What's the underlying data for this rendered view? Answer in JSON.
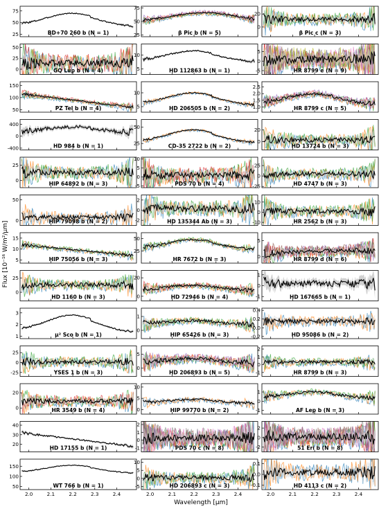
{
  "figure": {
    "ylabel": "Flux [10⁻¹⁶ W/m²/µm]",
    "xlabel": "Wavelength [µm]",
    "xlim": [
      1.96,
      2.49
    ],
    "xticks": [
      "2.0",
      "2.1",
      "2.2",
      "2.3",
      "2.4"
    ],
    "series_colors": [
      "#1f77b4",
      "#ff7f0e",
      "#2ca02c",
      "#d62728",
      "#9467bd",
      "#8c564b",
      "#e377c2",
      "#7f7f7f",
      "#bcbd22"
    ]
  },
  "chart_data": [
    {
      "type": "line",
      "title": "BD+70 260 b (N = 1)",
      "n": 1,
      "yticks": [
        "25",
        "50",
        "75"
      ],
      "ytick_vals": [
        25,
        50,
        75
      ],
      "ylim": [
        20,
        85
      ],
      "shape": "peak",
      "level": [
        45,
        70
      ],
      "noise": 0.03
    },
    {
      "type": "line",
      "title": "β Pic b (N = 5)",
      "n": 5,
      "yticks": [
        "25",
        "50",
        "75"
      ],
      "ytick_vals": [
        25,
        50,
        75
      ],
      "ylim": [
        22,
        78
      ],
      "shape": "pic",
      "level": [
        48,
        66
      ],
      "noise": 0.04
    },
    {
      "type": "line",
      "title": "β Pic c (N = 3)",
      "n": 3,
      "yticks": [
        "0",
        "20"
      ],
      "ytick_vals": [
        0,
        20
      ],
      "ylim": [
        -15,
        32
      ],
      "shape": "flat",
      "level": [
        12,
        12
      ],
      "noise": 0.14
    },
    {
      "type": "line",
      "title": "GQ Lup b (N = 4)",
      "n": 4,
      "yticks": [
        "0",
        "25",
        "50"
      ],
      "ytick_vals": [
        0,
        25,
        50
      ],
      "ylim": [
        -12,
        58
      ],
      "shape": "flat",
      "level": [
        14,
        14
      ],
      "noise": 0.2
    },
    {
      "type": "line",
      "title": "HD 112863 b (N = 1)",
      "n": 1,
      "yticks": [
        "5",
        "10"
      ],
      "ytick_vals": [
        5,
        10
      ],
      "ylim": [
        3,
        14
      ],
      "shape": "peak",
      "level": [
        8,
        11.5
      ],
      "noise": 0.04
    },
    {
      "type": "line",
      "title": "HR 8799 e (N = 9)",
      "n": 9,
      "yticks": [
        "-5",
        "0",
        "5"
      ],
      "ytick_vals": [
        -5,
        0,
        5
      ],
      "ylim": [
        -7,
        9
      ],
      "shape": "flat",
      "level": [
        1,
        1
      ],
      "noise": 0.22
    },
    {
      "type": "line",
      "title": "PZ Tel b (N = 4)",
      "n": 4,
      "yticks": [
        "50",
        "100",
        "150"
      ],
      "ytick_vals": [
        50,
        100,
        150
      ],
      "ylim": [
        40,
        165
      ],
      "shape": "decline",
      "level": [
        115,
        60
      ],
      "noise": 0.04
    },
    {
      "type": "line",
      "title": "HD 206505 b (N = 2)",
      "n": 2,
      "yticks": [
        "5",
        "10"
      ],
      "ytick_vals": [
        5,
        10
      ],
      "ylim": [
        3,
        14
      ],
      "shape": "peak",
      "level": [
        6,
        10
      ],
      "noise": 0.03
    },
    {
      "type": "line",
      "title": "HR 8799 c (N = 5)",
      "n": 5,
      "yticks": [
        "1.0",
        "1.5",
        "2.0",
        "2.5"
      ],
      "ytick_vals": [
        1,
        1.5,
        2,
        2.5
      ],
      "ylim": [
        0.6,
        2.9
      ],
      "shape": "peak",
      "level": [
        1.3,
        2.0
      ],
      "noise": 0.07
    },
    {
      "type": "line",
      "title": "HD 984 b (N = 1)",
      "n": 1,
      "yticks": [
        "-400",
        "0",
        "400"
      ],
      "ytick_vals": [
        -400,
        0,
        400
      ],
      "ylim": [
        -460,
        560
      ],
      "shape": "peak",
      "level": [
        150,
        320
      ],
      "noise": 0.1
    },
    {
      "type": "line",
      "title": "CD-35 2722 b (N = 2)",
      "n": 2,
      "yticks": [
        "25",
        "50"
      ],
      "ytick_vals": [
        25,
        50
      ],
      "ylim": [
        15,
        62
      ],
      "shape": "peak",
      "level": [
        28,
        46
      ],
      "noise": 0.03
    },
    {
      "type": "line",
      "title": "HD 13724 b (N = 3)",
      "n": 3,
      "yticks": [
        "0",
        "20"
      ],
      "ytick_vals": [
        0,
        20
      ],
      "ylim": [
        -14,
        38
      ],
      "shape": "flat",
      "level": [
        3,
        3
      ],
      "noise": 0.14
    },
    {
      "type": "line",
      "title": "HIP 64892 b (N = 3)",
      "n": 3,
      "yticks": [
        "0",
        "25"
      ],
      "ytick_vals": [
        0,
        25
      ],
      "ylim": [
        -12,
        38
      ],
      "shape": "flat",
      "level": [
        13,
        13
      ],
      "noise": 0.16
    },
    {
      "type": "line",
      "title": "PDS 70 b (N = 4)",
      "n": 4,
      "yticks": [
        "-5",
        "0",
        "5",
        "10"
      ],
      "ytick_vals": [
        -5,
        0,
        5,
        10
      ],
      "ylim": [
        -6,
        11
      ],
      "shape": "flat",
      "level": [
        1,
        1
      ],
      "noise": 0.18
    },
    {
      "type": "line",
      "title": "HD 4747 b (N = 3)",
      "n": 3,
      "yticks": [
        "-25",
        "0",
        "25"
      ],
      "ytick_vals": [
        -25,
        0,
        25
      ],
      "ylim": [
        -28,
        45
      ],
      "shape": "flat",
      "level": [
        5,
        5
      ],
      "noise": 0.13
    },
    {
      "type": "line",
      "title": "HIP 79098 b (N = 2)",
      "n": 2,
      "yticks": [
        "0",
        "50"
      ],
      "ytick_vals": [
        0,
        50
      ],
      "ylim": [
        -12,
        62
      ],
      "shape": "flat",
      "level": [
        8,
        8
      ],
      "noise": 0.13
    },
    {
      "type": "line",
      "title": "HD 135344 Ab (N = 3)",
      "n": 3,
      "yticks": [
        "-2",
        "0",
        "2"
      ],
      "ytick_vals": [
        -2,
        0,
        2
      ],
      "ylim": [
        -3,
        3
      ],
      "shape": "flat",
      "level": [
        0.3,
        0.3
      ],
      "noise": 0.18
    },
    {
      "type": "line",
      "title": "HR 2562 b (N = 3)",
      "n": 3,
      "yticks": [
        "-10",
        "0",
        "10"
      ],
      "ytick_vals": [
        -10,
        0,
        10
      ],
      "ylim": [
        -13,
        17
      ],
      "shape": "flat",
      "level": [
        1,
        1
      ],
      "noise": 0.14
    },
    {
      "type": "line",
      "title": "HIP 75056 b (N = 3)",
      "n": 3,
      "yticks": [
        "5",
        "10",
        "15"
      ],
      "ytick_vals": [
        5,
        10,
        15
      ],
      "ylim": [
        3.5,
        17.5
      ],
      "shape": "decline",
      "level": [
        12,
        7
      ],
      "noise": 0.05
    },
    {
      "type": "line",
      "title": "HR 7672 b (N = 3)",
      "n": 3,
      "yticks": [
        "25",
        "50"
      ],
      "ytick_vals": [
        25,
        50
      ],
      "ylim": [
        0,
        62
      ],
      "shape": "peak",
      "level": [
        30,
        48
      ],
      "noise": 0.05
    },
    {
      "type": "line",
      "title": "HR 8799 d (N = 6)",
      "n": 6,
      "yticks": [
        "0",
        "5"
      ],
      "ytick_vals": [
        0,
        5
      ],
      "ylim": [
        -2,
        7.5
      ],
      "shape": "rise",
      "level": [
        1.0,
        2.0
      ],
      "noise": 0.12
    },
    {
      "type": "line",
      "title": "HD 1160 b (N = 3)",
      "n": 3,
      "yticks": [
        "0",
        "25"
      ],
      "ytick_vals": [
        0,
        25
      ],
      "ylim": [
        -15,
        38
      ],
      "shape": "flat",
      "level": [
        13,
        13
      ],
      "noise": 0.12
    },
    {
      "type": "line",
      "title": "HD 72946 b (N = 4)",
      "n": 4,
      "yticks": [
        "0",
        "20"
      ],
      "ytick_vals": [
        0,
        20
      ],
      "ylim": [
        -5,
        28
      ],
      "shape": "peak",
      "level": [
        7,
        12
      ],
      "noise": 0.07
    },
    {
      "type": "line",
      "title": "HD 167665 b (N = 1)",
      "n": 1,
      "yticks": [
        "-1",
        "0",
        "1"
      ],
      "ytick_vals": [
        -1,
        0,
        1
      ],
      "ylim": [
        -1.4,
        1.4
      ],
      "shape": "flat",
      "level": [
        0.2,
        0.2
      ],
      "noise": 0.18
    },
    {
      "type": "line",
      "title": "µ² Sco b (N = 1)",
      "n": 1,
      "yticks": [
        "1",
        "2",
        "3"
      ],
      "ytick_vals": [
        1,
        2,
        3
      ],
      "ylim": [
        0.8,
        3.4
      ],
      "shape": "peak",
      "level": [
        1.5,
        2.8
      ],
      "noise": 0.03
    },
    {
      "type": "line",
      "title": "HIP 65426 b (N = 3)",
      "n": 3,
      "yticks": [
        "0",
        "1"
      ],
      "ytick_vals": [
        0,
        1
      ],
      "ylim": [
        -0.6,
        1.6
      ],
      "shape": "peak",
      "level": [
        0.45,
        0.7
      ],
      "noise": 0.08
    },
    {
      "type": "line",
      "title": "HD 95086 b (N = 2)",
      "n": 2,
      "yticks": [
        "-0.2",
        "0.0",
        "0.2",
        "0.4"
      ],
      "ytick_vals": [
        -0.2,
        0,
        0.2,
        0.4
      ],
      "ylim": [
        -0.25,
        0.45
      ],
      "shape": "flat",
      "level": [
        0.15,
        0.15
      ],
      "noise": 0.12
    },
    {
      "type": "line",
      "title": "YSES 1 b (N = 3)",
      "n": 3,
      "yticks": [
        "-25",
        "0",
        "25"
      ],
      "ytick_vals": [
        -25,
        0,
        25
      ],
      "ylim": [
        -35,
        42
      ],
      "shape": "flat",
      "level": [
        2,
        2
      ],
      "noise": 0.12
    },
    {
      "type": "line",
      "title": "HD 206893 b (N = 5)",
      "n": 5,
      "yticks": [
        "0",
        "5"
      ],
      "ytick_vals": [
        0,
        5
      ],
      "ylim": [
        -3,
        8
      ],
      "shape": "peak",
      "level": [
        2,
        3.5
      ],
      "noise": 0.1
    },
    {
      "type": "line",
      "title": "HR 8799 b (N = 3)",
      "n": 3,
      "yticks": [
        "-1",
        "0",
        "1",
        "2"
      ],
      "ytick_vals": [
        -1,
        0,
        1,
        2
      ],
      "ylim": [
        -1.5,
        2.4
      ],
      "shape": "flat",
      "level": [
        0.35,
        0.35
      ],
      "noise": 0.09
    },
    {
      "type": "line",
      "title": "HR 3549 b (N = 4)",
      "n": 4,
      "yticks": [
        "0",
        "20"
      ],
      "ytick_vals": [
        0,
        20
      ],
      "ylim": [
        -8,
        32
      ],
      "shape": "flat",
      "level": [
        9,
        9
      ],
      "noise": 0.12
    },
    {
      "type": "line",
      "title": "HIP 99770 b (N = 2)",
      "n": 2,
      "yticks": [
        "0",
        "5",
        "10"
      ],
      "ytick_vals": [
        0,
        5,
        10
      ],
      "ylim": [
        -2,
        11.5
      ],
      "shape": "peak",
      "level": [
        3,
        4.5
      ],
      "noise": 0.06
    },
    {
      "type": "line",
      "title": "AF Lep b (N = 3)",
      "n": 3,
      "yticks": [
        "-1",
        "0",
        "1"
      ],
      "ytick_vals": [
        -1,
        0,
        1
      ],
      "ylim": [
        -1.4,
        1.9
      ],
      "shape": "peak",
      "level": [
        0.4,
        1.0
      ],
      "noise": 0.07
    },
    {
      "type": "line",
      "title": "HD 17155 b (N = 1)",
      "n": 1,
      "yticks": [
        "20",
        "30",
        "40"
      ],
      "ytick_vals": [
        20,
        30,
        40
      ],
      "ylim": [
        12,
        44
      ],
      "shape": "decline",
      "level": [
        32,
        18
      ],
      "noise": 0.04
    },
    {
      "type": "line",
      "title": "PDS 70 c (N = 8)",
      "n": 8,
      "yticks": [
        "-1",
        "0",
        "1",
        "2"
      ],
      "ytick_vals": [
        -1,
        0,
        1,
        2
      ],
      "ylim": [
        -1.5,
        2.4
      ],
      "shape": "flat",
      "level": [
        0.3,
        0.3
      ],
      "noise": 0.2
    },
    {
      "type": "line",
      "title": "51 Eri b (N = 8)",
      "n": 8,
      "yticks": [
        "-2",
        "0",
        "2"
      ],
      "ytick_vals": [
        -2,
        0,
        2
      ],
      "ylim": [
        -3,
        3.4
      ],
      "shape": "flat",
      "level": [
        0.2,
        0.2
      ],
      "noise": 0.2
    },
    {
      "type": "line",
      "title": "WT 766 b (N = 1)",
      "n": 1,
      "yticks": [
        "50",
        "100",
        "150"
      ],
      "ytick_vals": [
        50,
        100,
        150
      ],
      "ylim": [
        35,
        185
      ],
      "shape": "peak",
      "level": [
        120,
        155
      ],
      "noise": 0.02
    },
    {
      "type": "line",
      "title": "HD 206893 c (N = 3)",
      "n": 3,
      "yticks": [
        "-5",
        "0",
        "5",
        "10"
      ],
      "ytick_vals": [
        -5,
        0,
        5,
        10
      ],
      "ylim": [
        -7,
        12
      ],
      "shape": "flat",
      "level": [
        0.5,
        0.5
      ],
      "noise": 0.13
    },
    {
      "type": "line",
      "title": "HD 4113 c (N = 2)",
      "n": 2,
      "yticks": [
        "-0.1",
        "0.0",
        "0.1"
      ],
      "ytick_vals": [
        -0.1,
        0,
        0.1
      ],
      "ylim": [
        -0.14,
        0.14
      ],
      "shape": "flat",
      "level": [
        0.02,
        0.02
      ],
      "noise": 0.2
    }
  ]
}
